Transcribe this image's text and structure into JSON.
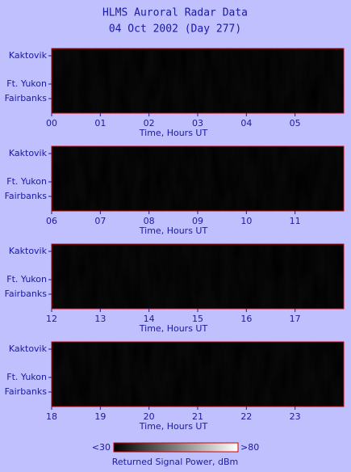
{
  "title": "HLMS Auroral Radar Data",
  "subtitle": "04 Oct 2002 (Day 277)",
  "chart_data": [
    {
      "type": "heatmap",
      "x_label": "Time, Hours UT",
      "xlim": [
        0,
        6
      ],
      "xticks": [
        {
          "value": 0,
          "label": "00"
        },
        {
          "value": 1,
          "label": "01"
        },
        {
          "value": 2,
          "label": "02"
        },
        {
          "value": 3,
          "label": "03"
        },
        {
          "value": 4,
          "label": "04"
        },
        {
          "value": 5,
          "label": "05"
        }
      ],
      "ylim": [
        63,
        71
      ],
      "yticks": [
        {
          "value": 70.1,
          "label": "Kaktovik"
        },
        {
          "value": 66.6,
          "label": "Ft. Yukon"
        },
        {
          "value": 64.8,
          "label": "Fairbanks"
        }
      ]
    },
    {
      "type": "heatmap",
      "x_label": "Time, Hours UT",
      "xlim": [
        6,
        12
      ],
      "xticks": [
        {
          "value": 6,
          "label": "06"
        },
        {
          "value": 7,
          "label": "07"
        },
        {
          "value": 8,
          "label": "08"
        },
        {
          "value": 9,
          "label": "09"
        },
        {
          "value": 10,
          "label": "10"
        },
        {
          "value": 11,
          "label": "11"
        }
      ],
      "ylim": [
        63,
        71
      ],
      "yticks": [
        {
          "value": 70.1,
          "label": "Kaktovik"
        },
        {
          "value": 66.6,
          "label": "Ft. Yukon"
        },
        {
          "value": 64.8,
          "label": "Fairbanks"
        }
      ]
    },
    {
      "type": "heatmap",
      "x_label": "Time, Hours UT",
      "xlim": [
        12,
        18
      ],
      "xticks": [
        {
          "value": 12,
          "label": "12"
        },
        {
          "value": 13,
          "label": "13"
        },
        {
          "value": 14,
          "label": "14"
        },
        {
          "value": 15,
          "label": "15"
        },
        {
          "value": 16,
          "label": "16"
        },
        {
          "value": 17,
          "label": "17"
        }
      ],
      "ylim": [
        63,
        71
      ],
      "yticks": [
        {
          "value": 70.1,
          "label": "Kaktovik"
        },
        {
          "value": 66.6,
          "label": "Ft. Yukon"
        },
        {
          "value": 64.8,
          "label": "Fairbanks"
        }
      ]
    },
    {
      "type": "heatmap",
      "x_label": "Time, Hours UT",
      "xlim": [
        18,
        24
      ],
      "xticks": [
        {
          "value": 18,
          "label": "18"
        },
        {
          "value": 19,
          "label": "19"
        },
        {
          "value": 20,
          "label": "20"
        },
        {
          "value": 21,
          "label": "21"
        },
        {
          "value": 22,
          "label": "22"
        },
        {
          "value": 23,
          "label": "23"
        }
      ],
      "ylim": [
        63,
        71
      ],
      "yticks": [
        {
          "value": 70.1,
          "label": "Kaktovik"
        },
        {
          "value": 66.6,
          "label": "Ft. Yukon"
        },
        {
          "value": 64.8,
          "label": "Fairbanks"
        }
      ]
    }
  ],
  "colorbar": {
    "min_label": "<30",
    "max_label": ">80",
    "label": "Returned Signal Power, dBm"
  }
}
